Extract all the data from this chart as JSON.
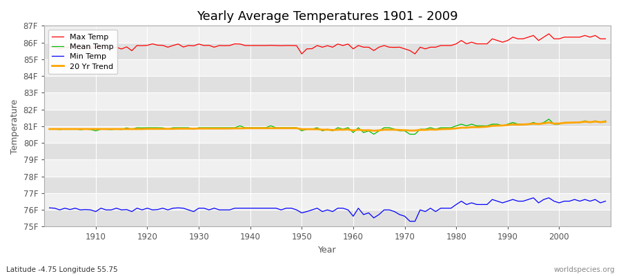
{
  "title": "Yearly Average Temperatures 1901 - 2009",
  "xlabel": "Year",
  "ylabel": "Temperature",
  "subtitle": "Latitude -4.75 Longitude 55.75",
  "watermark": "worldspecies.org",
  "years": [
    1901,
    1902,
    1903,
    1904,
    1905,
    1906,
    1907,
    1908,
    1909,
    1910,
    1911,
    1912,
    1913,
    1914,
    1915,
    1916,
    1917,
    1918,
    1919,
    1920,
    1921,
    1922,
    1923,
    1924,
    1925,
    1926,
    1927,
    1928,
    1929,
    1930,
    1931,
    1932,
    1933,
    1934,
    1935,
    1936,
    1937,
    1938,
    1939,
    1940,
    1941,
    1942,
    1943,
    1944,
    1945,
    1946,
    1947,
    1948,
    1949,
    1950,
    1951,
    1952,
    1953,
    1954,
    1955,
    1956,
    1957,
    1958,
    1959,
    1960,
    1961,
    1962,
    1963,
    1964,
    1965,
    1966,
    1967,
    1968,
    1969,
    1970,
    1971,
    1972,
    1973,
    1974,
    1975,
    1976,
    1977,
    1978,
    1979,
    1980,
    1981,
    1982,
    1983,
    1984,
    1985,
    1986,
    1987,
    1988,
    1989,
    1990,
    1991,
    1992,
    1993,
    1994,
    1995,
    1996,
    1997,
    1998,
    1999,
    2000,
    2001,
    2002,
    2003,
    2004,
    2005,
    2006,
    2007,
    2008,
    2009
  ],
  "max_temp": [
    85.75,
    85.72,
    85.62,
    85.7,
    85.71,
    85.82,
    85.6,
    85.8,
    85.63,
    85.74,
    85.82,
    85.7,
    85.62,
    85.72,
    85.61,
    85.74,
    85.51,
    85.82,
    85.81,
    85.83,
    85.92,
    85.84,
    85.83,
    85.72,
    85.82,
    85.91,
    85.73,
    85.82,
    85.8,
    85.91,
    85.82,
    85.83,
    85.72,
    85.82,
    85.81,
    85.82,
    85.92,
    85.91,
    85.82,
    85.82,
    85.82,
    85.82,
    85.82,
    85.83,
    85.82,
    85.81,
    85.82,
    85.82,
    85.81,
    85.32,
    85.62,
    85.63,
    85.82,
    85.72,
    85.81,
    85.72,
    85.91,
    85.82,
    85.91,
    85.62,
    85.82,
    85.72,
    85.72,
    85.52,
    85.72,
    85.82,
    85.72,
    85.71,
    85.72,
    85.62,
    85.52,
    85.32,
    85.72,
    85.62,
    85.72,
    85.72,
    85.82,
    85.82,
    85.82,
    85.92,
    86.12,
    85.92,
    86.02,
    85.92,
    85.92,
    85.92,
    86.22,
    86.12,
    86.02,
    86.12,
    86.32,
    86.22,
    86.22,
    86.32,
    86.42,
    86.12,
    86.32,
    86.52,
    86.22,
    86.22,
    86.32,
    86.32,
    86.32,
    86.32,
    86.42,
    86.32,
    86.42,
    86.22,
    86.22
  ],
  "mean_temp": [
    80.84,
    80.82,
    80.8,
    80.82,
    80.81,
    80.83,
    80.79,
    80.82,
    80.8,
    80.72,
    80.82,
    80.81,
    80.8,
    80.82,
    80.8,
    80.9,
    80.81,
    80.91,
    80.9,
    80.91,
    80.91,
    80.91,
    80.9,
    80.82,
    80.91,
    80.91,
    80.91,
    80.91,
    80.82,
    80.91,
    80.91,
    80.91,
    80.91,
    80.91,
    80.91,
    80.91,
    80.91,
    81.02,
    80.91,
    80.91,
    80.91,
    80.91,
    80.91,
    81.02,
    80.91,
    80.91,
    80.91,
    80.91,
    80.91,
    80.72,
    80.82,
    80.82,
    80.91,
    80.72,
    80.82,
    80.72,
    80.91,
    80.82,
    80.91,
    80.62,
    80.91,
    80.62,
    80.72,
    80.52,
    80.72,
    80.91,
    80.91,
    80.82,
    80.72,
    80.72,
    80.52,
    80.52,
    80.82,
    80.82,
    80.91,
    80.82,
    80.91,
    80.91,
    80.91,
    81.02,
    81.12,
    81.02,
    81.12,
    81.02,
    81.02,
    81.02,
    81.12,
    81.12,
    81.02,
    81.12,
    81.22,
    81.12,
    81.12,
    81.12,
    81.22,
    81.12,
    81.22,
    81.42,
    81.12,
    81.12,
    81.22,
    81.22,
    81.22,
    81.22,
    81.32,
    81.22,
    81.32,
    81.22,
    81.32
  ],
  "min_temp": [
    76.12,
    76.1,
    76.0,
    76.1,
    76.02,
    76.1,
    76.0,
    76.02,
    76.0,
    75.9,
    76.1,
    76.0,
    76.0,
    76.1,
    76.0,
    76.02,
    75.9,
    76.1,
    76.0,
    76.1,
    76.0,
    76.02,
    76.1,
    76.0,
    76.1,
    76.12,
    76.1,
    76.0,
    75.9,
    76.1,
    76.1,
    76.0,
    76.1,
    76.0,
    76.0,
    76.0,
    76.1,
    76.1,
    76.1,
    76.1,
    76.1,
    76.1,
    76.1,
    76.1,
    76.1,
    76.0,
    76.1,
    76.1,
    76.0,
    75.82,
    75.9,
    76.0,
    76.1,
    75.9,
    76.0,
    75.9,
    76.1,
    76.1,
    76.0,
    75.62,
    76.1,
    75.72,
    75.82,
    75.52,
    75.72,
    76.0,
    76.0,
    75.9,
    75.72,
    75.62,
    75.32,
    75.32,
    76.0,
    75.9,
    76.1,
    75.9,
    76.1,
    76.1,
    76.1,
    76.32,
    76.52,
    76.32,
    76.42,
    76.32,
    76.32,
    76.32,
    76.62,
    76.52,
    76.42,
    76.52,
    76.62,
    76.52,
    76.52,
    76.62,
    76.72,
    76.42,
    76.62,
    76.72,
    76.52,
    76.42,
    76.52,
    76.52,
    76.62,
    76.52,
    76.62,
    76.52,
    76.62,
    76.42,
    76.52
  ],
  "trend_20yr": [
    80.83,
    80.83,
    80.83,
    80.83,
    80.83,
    80.83,
    80.83,
    80.83,
    80.83,
    80.83,
    80.83,
    80.83,
    80.83,
    80.83,
    80.83,
    80.83,
    80.83,
    80.83,
    80.83,
    80.84,
    80.84,
    80.84,
    80.84,
    80.84,
    80.84,
    80.85,
    80.85,
    80.85,
    80.85,
    80.86,
    80.86,
    80.86,
    80.86,
    80.86,
    80.86,
    80.86,
    80.87,
    80.87,
    80.88,
    80.88,
    80.88,
    80.88,
    80.88,
    80.88,
    80.88,
    80.88,
    80.88,
    80.88,
    80.88,
    80.82,
    80.82,
    80.82,
    80.82,
    80.79,
    80.79,
    80.77,
    80.79,
    80.79,
    80.8,
    80.75,
    80.79,
    80.75,
    80.76,
    80.73,
    80.75,
    80.79,
    80.79,
    80.79,
    80.77,
    80.76,
    80.74,
    80.74,
    80.78,
    80.78,
    80.8,
    80.79,
    80.82,
    80.83,
    80.84,
    80.87,
    80.91,
    80.91,
    80.94,
    80.94,
    80.95,
    80.97,
    81.02,
    81.03,
    81.04,
    81.07,
    81.1,
    81.09,
    81.1,
    81.12,
    81.15,
    81.13,
    81.17,
    81.22,
    81.15,
    81.16,
    81.2,
    81.21,
    81.22,
    81.23,
    81.27,
    81.24,
    81.28,
    81.24,
    81.27
  ],
  "ylim": [
    75.0,
    87.0
  ],
  "yticks": [
    75,
    76,
    77,
    78,
    79,
    80,
    81,
    82,
    83,
    84,
    85,
    86,
    87
  ],
  "ytick_labels": [
    "75F",
    "76F",
    "77F",
    "78F",
    "79F",
    "80F",
    "81F",
    "82F",
    "83F",
    "84F",
    "85F",
    "86F",
    "87F"
  ],
  "xticks": [
    1910,
    1920,
    1930,
    1940,
    1950,
    1960,
    1970,
    1980,
    1990,
    2000
  ],
  "fig_bg_color": "#ffffff",
  "plot_bg_color_light": "#f0f0f0",
  "plot_bg_color_dark": "#e0e0e0",
  "max_color": "#ff0000",
  "mean_color": "#00bb00",
  "min_color": "#0000ff",
  "trend_color": "#ffa500",
  "legend_labels": [
    "Max Temp",
    "Mean Temp",
    "Min Temp",
    "20 Yr Trend"
  ],
  "title_fontsize": 13,
  "axis_label_fontsize": 9,
  "tick_fontsize": 8.5
}
